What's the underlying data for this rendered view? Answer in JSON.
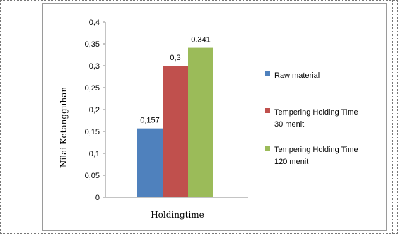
{
  "chart_data": {
    "type": "bar",
    "title": "",
    "xlabel": "Holdingtime",
    "ylabel": "Nilai Ketangguhan",
    "ylim": [
      0,
      0.4
    ],
    "yticks": [
      "0",
      "0,05",
      "0,1",
      "0,15",
      "0,2",
      "0,25",
      "0,3",
      "0,35",
      "0,4"
    ],
    "grid": false,
    "legend_position": "right",
    "categories": [
      ""
    ],
    "series": [
      {
        "name": "Raw material",
        "values": [
          0.157
        ],
        "label": "0,157",
        "color": "#4f81bd"
      },
      {
        "name": "Tempering Holding Time 30 menit",
        "values": [
          0.3
        ],
        "label": "0,3",
        "color": "#c0504d"
      },
      {
        "name": "Tempering Holding Time 120 menit",
        "values": [
          0.341
        ],
        "label": "0.341",
        "color": "#9bbb59"
      }
    ],
    "legend_lines": [
      [
        "Raw material"
      ],
      [
        "Tempering Holding Time",
        "30 menit"
      ],
      [
        "Tempering Holding Time",
        "120 menit"
      ]
    ]
  }
}
